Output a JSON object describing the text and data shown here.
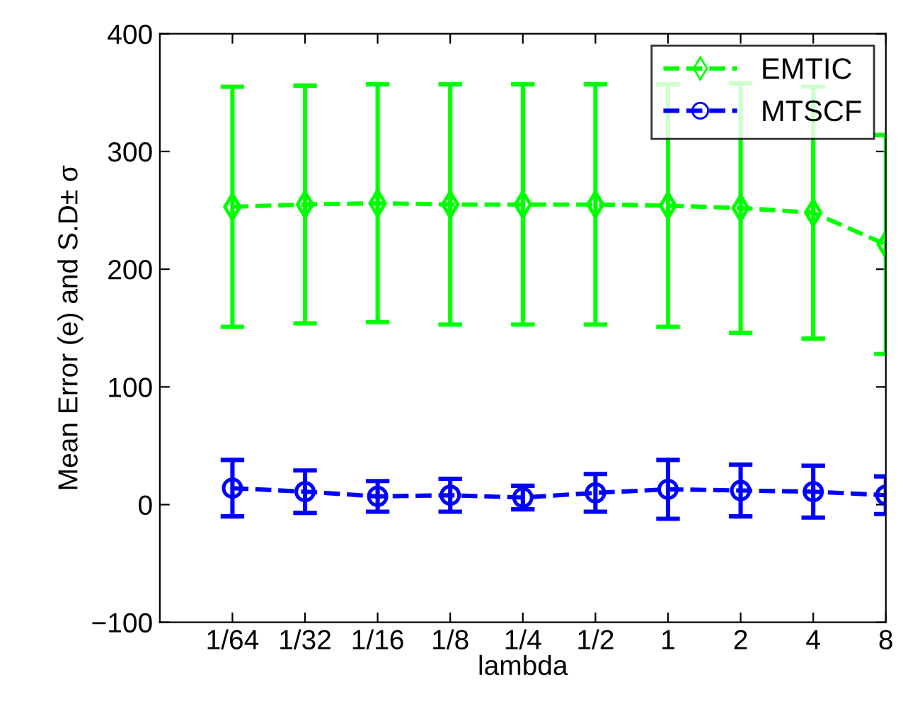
{
  "chart_data": {
    "type": "line",
    "categories": [
      "1/64",
      "1/32",
      "1/16",
      "1/8",
      "1/4",
      "1/2",
      "1",
      "2",
      "4",
      "8"
    ],
    "xlabel": "lambda",
    "ylabel": "Mean Error (e) and S.D± σ",
    "ylim": [
      -100,
      400
    ],
    "yticks": [
      {
        "value": -100,
        "label": "−100"
      },
      0,
      100,
      200,
      300,
      400
    ],
    "series": [
      {
        "name": "EMTIC",
        "color": "#00ff00",
        "marker": "diamond",
        "line_style": "dashed",
        "values": [
          253,
          255,
          256,
          255,
          255,
          255,
          254,
          252,
          248,
          221
        ],
        "errors": [
          102,
          101,
          101,
          102,
          102,
          102,
          103,
          106,
          107,
          93
        ]
      },
      {
        "name": "MTSCF",
        "color": "#0000ff",
        "marker": "circle",
        "line_style": "dashed",
        "values": [
          14,
          11,
          7,
          8,
          6,
          10,
          13,
          12,
          11,
          8
        ],
        "errors": [
          24,
          18,
          13,
          14,
          10,
          16,
          25,
          22,
          22,
          16
        ]
      }
    ],
    "legend": "top right",
    "grid": false
  }
}
